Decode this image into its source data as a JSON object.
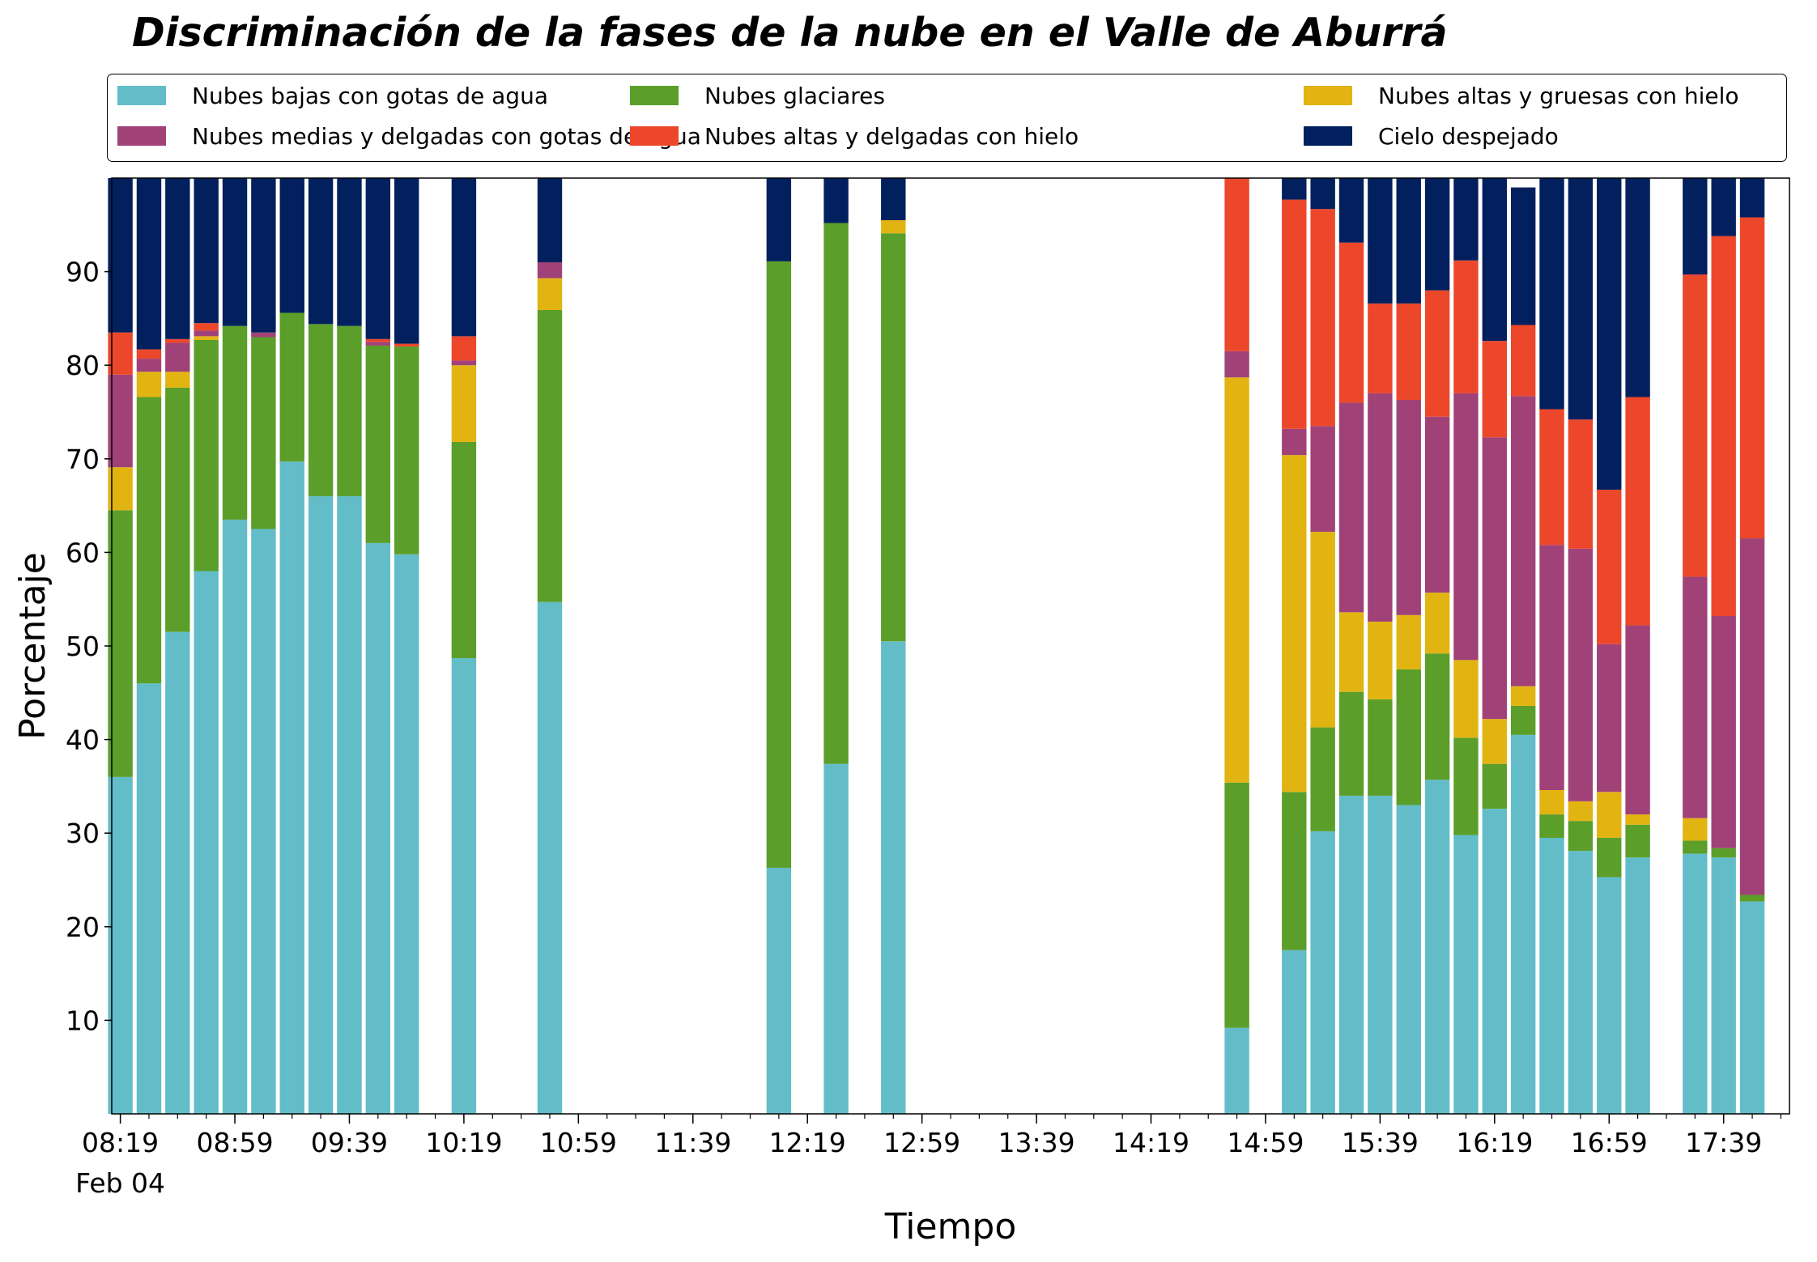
{
  "chart_data": {
    "type": "bar",
    "stacked": true,
    "title": "Discriminación de la fases de la nube en el Valle de Aburrá",
    "xlabel": "Tiempo",
    "ylabel": "Porcentaje",
    "ylim": [
      0,
      100
    ],
    "yticks": [
      10,
      20,
      30,
      40,
      50,
      60,
      70,
      80,
      90
    ],
    "xlim": [
      "08:16",
      "18:02"
    ],
    "xticks": [
      "08:19",
      "08:59",
      "09:39",
      "10:19",
      "10:59",
      "11:39",
      "12:19",
      "12:59",
      "13:39",
      "14:19",
      "14:59",
      "15:39",
      "16:19",
      "16:59",
      "17:39"
    ],
    "x_minor_tick_interval_minutes": 10,
    "date_label": "Feb 04",
    "bar_width_minutes": 8.6,
    "grid": false,
    "legend_position": "top",
    "legend_columns": 3,
    "x": [
      "08:19",
      "08:29",
      "08:39",
      "08:49",
      "08:59",
      "09:09",
      "09:19",
      "09:29",
      "09:39",
      "09:49",
      "09:59",
      "10:19",
      "10:49",
      "12:09",
      "12:29",
      "12:49",
      "14:49",
      "15:09",
      "15:19",
      "15:29",
      "15:39",
      "15:49",
      "15:59",
      "16:09",
      "16:19",
      "16:29",
      "16:39",
      "16:49",
      "16:59",
      "17:09",
      "17:29",
      "17:39",
      "17:49"
    ],
    "series": [
      {
        "name": "Nubes bajas con gotas de agua",
        "color": "#63bdc9",
        "values": [
          36,
          46,
          51.5,
          58,
          63.5,
          62.5,
          69.7,
          66,
          66,
          61,
          59.8,
          48.7,
          54.7,
          26.3,
          37.4,
          50.5,
          9.2,
          17.5,
          30.2,
          34,
          34,
          33,
          35.7,
          29.8,
          32.6,
          40.5,
          29.5,
          28.1,
          25.3,
          27.4,
          27.8,
          27.4,
          22.7
        ]
      },
      {
        "name": "Nubes glaciares",
        "color": "#5b9e29",
        "values": [
          28.5,
          30.6,
          26.1,
          24.7,
          20.7,
          20.5,
          15.9,
          18.4,
          18.2,
          21.1,
          22.2,
          23.1,
          31.2,
          64.8,
          57.8,
          43.6,
          26.2,
          16.9,
          11.1,
          11.1,
          10.3,
          14.5,
          13.5,
          10.4,
          4.8,
          3.1,
          2.5,
          3.2,
          4.2,
          3.5,
          1.4,
          1,
          0.7
        ]
      },
      {
        "name": "Nubes altas y gruesas con hielo",
        "color": "#e2b412",
        "values": [
          4.6,
          2.7,
          1.7,
          0.4,
          0,
          0,
          0,
          0,
          0,
          0,
          0,
          8.2,
          3.4,
          0,
          0,
          1.4,
          43.3,
          36,
          20.9,
          8.5,
          8.3,
          5.8,
          6.5,
          8.3,
          4.8,
          2.1,
          2.6,
          2.1,
          4.9,
          1.1,
          2.4,
          0,
          0
        ]
      },
      {
        "name": "Nubes medias y delgadas con gotas de agua",
        "color": "#a04277",
        "values": [
          9.9,
          1.4,
          3.1,
          0.6,
          0,
          0.5,
          0,
          0,
          0,
          0.4,
          0,
          0.5,
          1.7,
          0,
          0,
          0,
          2.8,
          2.8,
          11.3,
          22.4,
          24.4,
          23,
          18.8,
          28.5,
          30.1,
          31,
          26.2,
          27,
          15.8,
          20.2,
          25.8,
          24.8,
          38.1
        ]
      },
      {
        "name": "Nubes altas y delgadas con hielo",
        "color": "#ec472a",
        "values": [
          4.5,
          1,
          0.4,
          0.8,
          0,
          0,
          0,
          0,
          0,
          0.3,
          0.3,
          2.6,
          0,
          0,
          0,
          0,
          18.5,
          24.5,
          23.2,
          17.1,
          9.6,
          10.3,
          13.5,
          14.2,
          10.3,
          7.6,
          14.5,
          13.8,
          16.5,
          24.4,
          32.3,
          40.6,
          34.3
        ]
      },
      {
        "name": "Cielo despejado",
        "color": "#03205e",
        "values": [
          16.5,
          18.3,
          17.2,
          15.5,
          15.8,
          16.5,
          14.4,
          15.6,
          15.8,
          17.2,
          17.7,
          16.9,
          9,
          8.9,
          4.8,
          4.5,
          0,
          2.3,
          3.3,
          6.9,
          13.4,
          13.4,
          12,
          8.8,
          17.4,
          14.7,
          24.7,
          25.8,
          33.3,
          23.4,
          10.3,
          6.2,
          4.2
        ]
      }
    ]
  }
}
